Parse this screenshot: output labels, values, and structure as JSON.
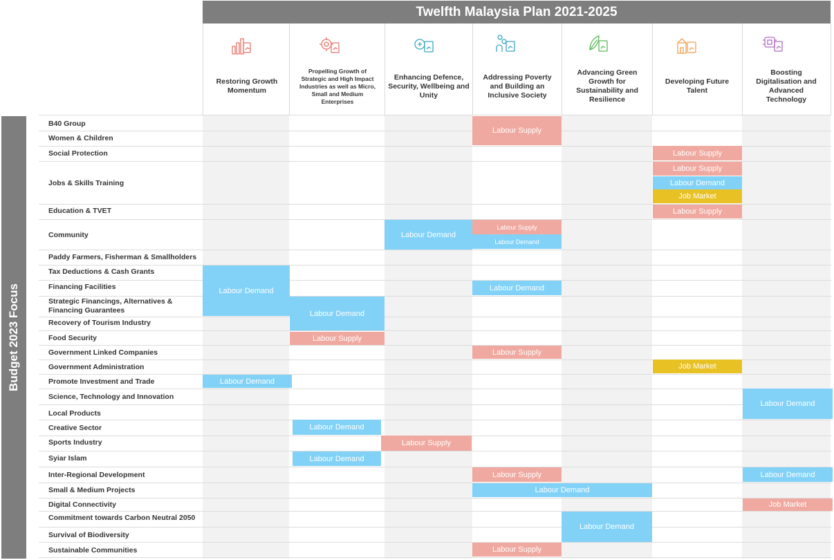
{
  "title": "Twelfth Malaysia Plan 2021-2025",
  "side_label": "Budget 2023 Focus",
  "colors": {
    "banner": "#7e7e7e",
    "labour_demand": "#82d2f8",
    "labour_supply": "#f0a9a0",
    "job_market": "#e8c124"
  },
  "columns": [
    {
      "label": "Restoring Growth Momentum",
      "icon": "growth-chart-icon",
      "color": "#e8756b"
    },
    {
      "label": "Propelling Growth of Strategic and High Impact Industries as well as Micro, Small and Medium Enterprises",
      "icon": "industry-gear-icon",
      "color": "#e8756b"
    },
    {
      "label": "Enhancing Defence, Security, Wellbeing and Unity",
      "icon": "shield-security-icon",
      "color": "#3aa6c2"
    },
    {
      "label": "Addressing Poverty and Building an Inclusive Society",
      "icon": "people-inclusive-icon",
      "color": "#3aa6c2"
    },
    {
      "label": "Advancing Green Growth for Sustainability and Resilience",
      "icon": "leaf-green-icon",
      "color": "#5cb85c"
    },
    {
      "label": "Developing Future Talent",
      "icon": "talent-building-icon",
      "color": "#f0a050"
    },
    {
      "label": "Boosting Digitalisation and Advanced Technology",
      "icon": "digital-chip-icon",
      "color": "#b06cc0"
    }
  ],
  "rows": [
    "B40 Group",
    "Women & Children",
    "Social Protection",
    "Jobs & Skills Training",
    "Education & TVET",
    "Community",
    "Paddy Farmers, Fisherman & Smallholders",
    "Tax Deductions & Cash Grants",
    "Financing Facilities",
    "Strategic Financings, Alternatives & Financing Guarantees",
    "Recovery of Tourism Industry",
    "Food Security",
    "Government Linked Companies",
    "Government Administration",
    "Promote Investment and Trade",
    "Science, Technology and Innovation",
    "Local Products",
    "Creative Sector",
    "Sports Industry",
    "Syiar Islam",
    "Inter-Regional Development",
    "Small & Medium Projects",
    "Digital Connectivity",
    "Commitment towards Carbon Neutral 2050",
    "Survival of Biodiversity",
    "Sustainable Communities"
  ],
  "cells": {
    "labour_supply": "Labour Supply",
    "labour_demand": "Labour Demand",
    "job_market": "Job Market"
  }
}
